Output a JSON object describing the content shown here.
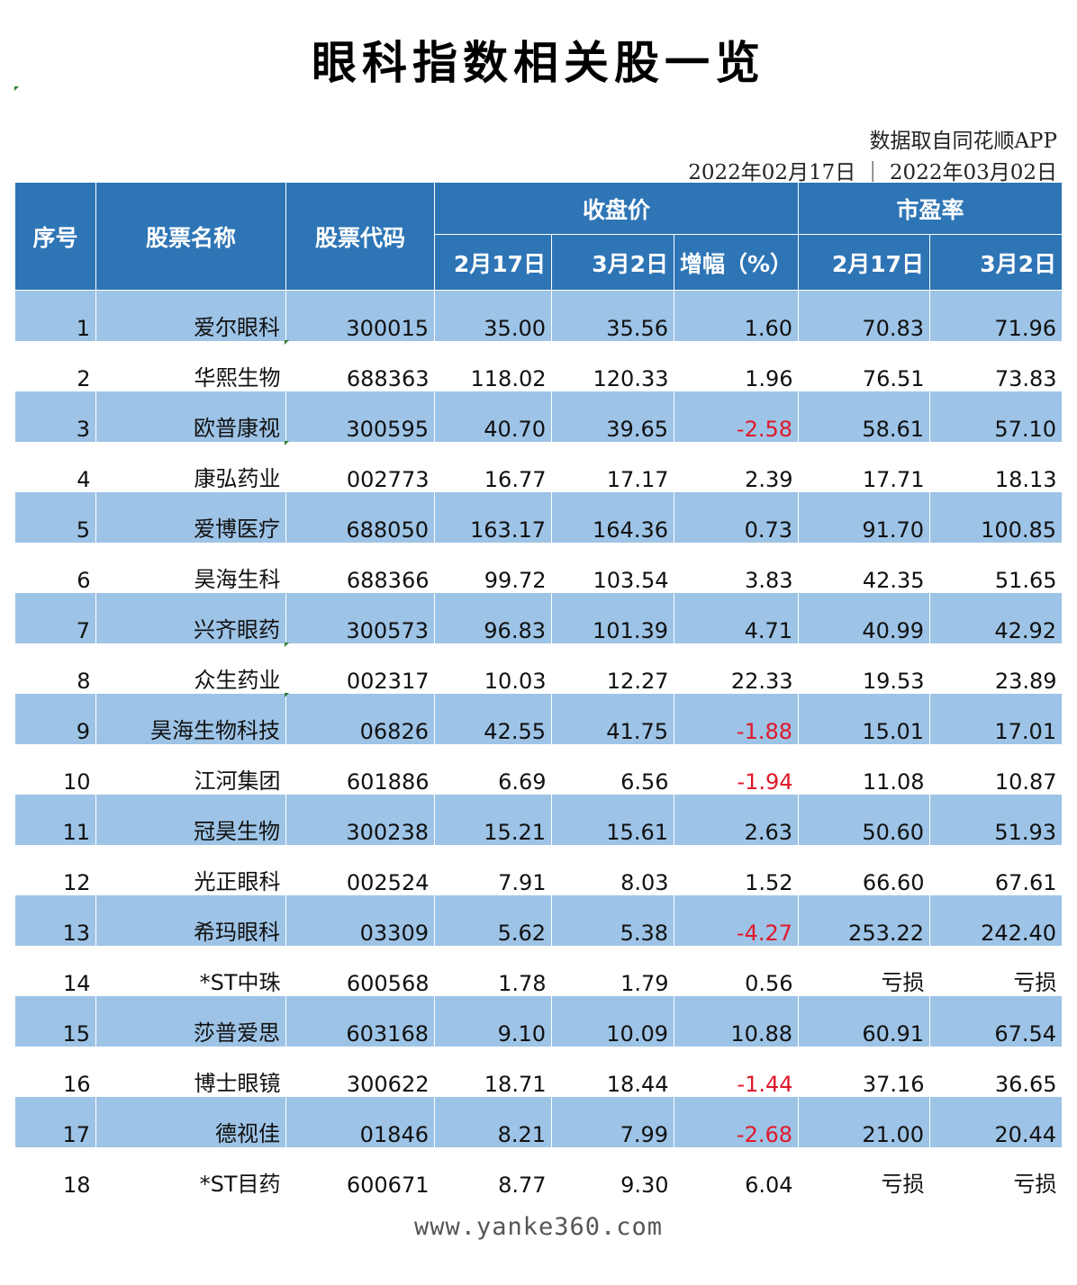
{
  "title": "眼科指数相关股一览",
  "source": "数据取自同花顺APP",
  "date_range": "2022年02月17日 ｜ 2022年03月02日",
  "headers": {
    "index": "序号",
    "name": "股票名称",
    "code": "股票代码",
    "close_group": "收盘价",
    "pe_group": "市盈率",
    "close_d1": "2月17日",
    "close_d2": "3月2日",
    "change": "增幅（%）",
    "pe_d1": "2月17日",
    "pe_d2": "3月2日"
  },
  "colors": {
    "header_bg": "#2e75b6",
    "stripe_bg": "#9dc3e6",
    "negative": "#e0182a"
  },
  "rows": [
    [
      "1",
      "爱尔眼科",
      "300015",
      "35.00",
      "35.56",
      "1.60",
      "70.83",
      "71.96"
    ],
    [
      "2",
      "华熙生物",
      "688363",
      "118.02",
      "120.33",
      "1.96",
      "76.51",
      "73.83"
    ],
    [
      "3",
      "欧普康视",
      "300595",
      "40.70",
      "39.65",
      "-2.58",
      "58.61",
      "57.10"
    ],
    [
      "4",
      "康弘药业",
      "002773",
      "16.77",
      "17.17",
      "2.39",
      "17.71",
      "18.13"
    ],
    [
      "5",
      "爱博医疗",
      "688050",
      "163.17",
      "164.36",
      "0.73",
      "91.70",
      "100.85"
    ],
    [
      "6",
      "昊海生科",
      "688366",
      "99.72",
      "103.54",
      "3.83",
      "42.35",
      "51.65"
    ],
    [
      "7",
      "兴齐眼药",
      "300573",
      "96.83",
      "101.39",
      "4.71",
      "40.99",
      "42.92"
    ],
    [
      "8",
      "众生药业",
      "002317",
      "10.03",
      "12.27",
      "22.33",
      "19.53",
      "23.89"
    ],
    [
      "9",
      "昊海生物科技",
      "06826",
      "42.55",
      "41.75",
      "-1.88",
      "15.01",
      "17.01"
    ],
    [
      "10",
      "江河集团",
      "601886",
      "6.69",
      "6.56",
      "-1.94",
      "11.08",
      "10.87"
    ],
    [
      "11",
      "冠昊生物",
      "300238",
      "15.21",
      "15.61",
      "2.63",
      "50.60",
      "51.93"
    ],
    [
      "12",
      "光正眼科",
      "002524",
      "7.91",
      "8.03",
      "1.52",
      "66.60",
      "67.61"
    ],
    [
      "13",
      "希玛眼科",
      "03309",
      "5.62",
      "5.38",
      "-4.27",
      "253.22",
      "242.40"
    ],
    [
      "14",
      "*ST中珠",
      "600568",
      "1.78",
      "1.79",
      "0.56",
      "亏损",
      "亏损"
    ],
    [
      "15",
      "莎普爱思",
      "603168",
      "9.10",
      "10.09",
      "10.88",
      "60.91",
      "67.54"
    ],
    [
      "16",
      "博士眼镜",
      "300622",
      "18.71",
      "18.44",
      "-1.44",
      "37.16",
      "36.65"
    ],
    [
      "17",
      "德视佳",
      "01846",
      "8.21",
      "7.99",
      "-2.68",
      "21.00",
      "20.44"
    ],
    [
      "18",
      "*ST目药",
      "600671",
      "8.77",
      "9.30",
      "6.04",
      "亏损",
      "亏损"
    ]
  ],
  "footer": "www.yanke360.com"
}
